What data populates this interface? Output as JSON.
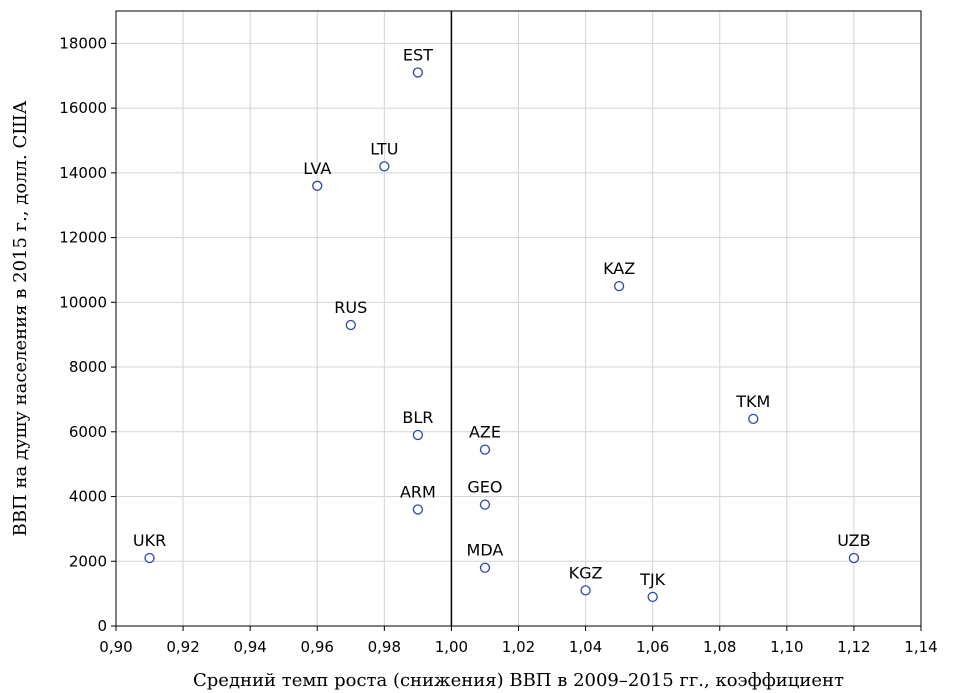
{
  "chart_data": {
    "type": "scatter",
    "title": "",
    "xlabel": "Средний темп роста (снижения) ВВП в 2009–2015 гг., коэффициент",
    "ylabel": "ВВП на душу населения в 2015 г., долл. США",
    "xlim": [
      0.9,
      1.14
    ],
    "ylim": [
      0,
      19000
    ],
    "xticks": [
      {
        "value": 0.9,
        "label": "0,90"
      },
      {
        "value": 0.92,
        "label": "0,92"
      },
      {
        "value": 0.94,
        "label": "0,94"
      },
      {
        "value": 0.96,
        "label": "0,96"
      },
      {
        "value": 0.98,
        "label": "0,98"
      },
      {
        "value": 1.0,
        "label": "1,00"
      },
      {
        "value": 1.02,
        "label": "1,02"
      },
      {
        "value": 1.04,
        "label": "1,04"
      },
      {
        "value": 1.06,
        "label": "1,06"
      },
      {
        "value": 1.08,
        "label": "1,08"
      },
      {
        "value": 1.1,
        "label": "1,10"
      },
      {
        "value": 1.12,
        "label": "1,12"
      },
      {
        "value": 1.14,
        "label": "1,14"
      }
    ],
    "yticks": [
      {
        "value": 0,
        "label": "0"
      },
      {
        "value": 2000,
        "label": "2000"
      },
      {
        "value": 4000,
        "label": "4000"
      },
      {
        "value": 6000,
        "label": "6000"
      },
      {
        "value": 8000,
        "label": "8000"
      },
      {
        "value": 10000,
        "label": "10000"
      },
      {
        "value": 12000,
        "label": "12000"
      },
      {
        "value": 14000,
        "label": "14000"
      },
      {
        "value": 16000,
        "label": "16000"
      },
      {
        "value": 18000,
        "label": "18000"
      }
    ],
    "grid": true,
    "reference_line_x": 1.0,
    "marker_color": "#2b45a8",
    "points": [
      {
        "label": "EST",
        "x": 0.99,
        "y": 17100
      },
      {
        "label": "LTU",
        "x": 0.98,
        "y": 14200
      },
      {
        "label": "LVA",
        "x": 0.96,
        "y": 13600
      },
      {
        "label": "RUS",
        "x": 0.97,
        "y": 9300
      },
      {
        "label": "KAZ",
        "x": 1.05,
        "y": 10500
      },
      {
        "label": "TKM",
        "x": 1.09,
        "y": 6400
      },
      {
        "label": "BLR",
        "x": 0.99,
        "y": 5900
      },
      {
        "label": "AZE",
        "x": 1.01,
        "y": 5450
      },
      {
        "label": "GEO",
        "x": 1.01,
        "y": 3750
      },
      {
        "label": "ARM",
        "x": 0.99,
        "y": 3600
      },
      {
        "label": "UKR",
        "x": 0.91,
        "y": 2100
      },
      {
        "label": "UZB",
        "x": 1.12,
        "y": 2100
      },
      {
        "label": "MDA",
        "x": 1.01,
        "y": 1800
      },
      {
        "label": "KGZ",
        "x": 1.04,
        "y": 1100
      },
      {
        "label": "TJK",
        "x": 1.06,
        "y": 900
      }
    ]
  }
}
